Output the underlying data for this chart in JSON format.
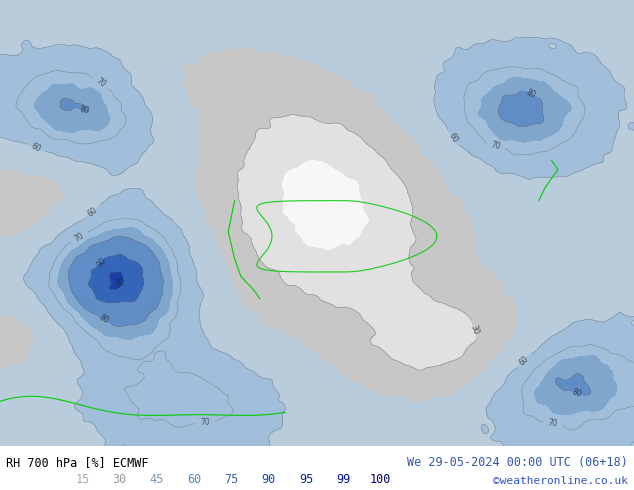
{
  "title_left": "RH 700 hPa [%] ECMWF",
  "title_right": "We 29-05-2024 00:00 UTC (06+18)",
  "credit": "©weatheronline.co.uk",
  "colorbar_values": [
    15,
    30,
    45,
    60,
    75,
    90,
    95,
    99,
    100
  ],
  "cb_label_colors": [
    "#aaaaaa",
    "#999999",
    "#7799bb",
    "#5588cc",
    "#3366aa",
    "#1144aa",
    "#002299",
    "#001188",
    "#000066"
  ],
  "bg_color": "#ffffff",
  "label_color_left": "#000000",
  "label_color_right": "#3355aa",
  "credit_color": "#3355cc",
  "figsize": [
    6.34,
    4.9
  ],
  "dpi": 100,
  "map_colors": [
    "#f8f8f8",
    "#e8e8e8",
    "#d4d4d4",
    "#c0c8d8",
    "#a0b8d0",
    "#80a0c8",
    "#6088b8",
    "#4070a8",
    "#2058a0",
    "#1040a0",
    "#0030a0",
    "#e8ffcc",
    "#d0ffaa"
  ],
  "contour_color": "#666666",
  "contour_label_color": "#222222"
}
